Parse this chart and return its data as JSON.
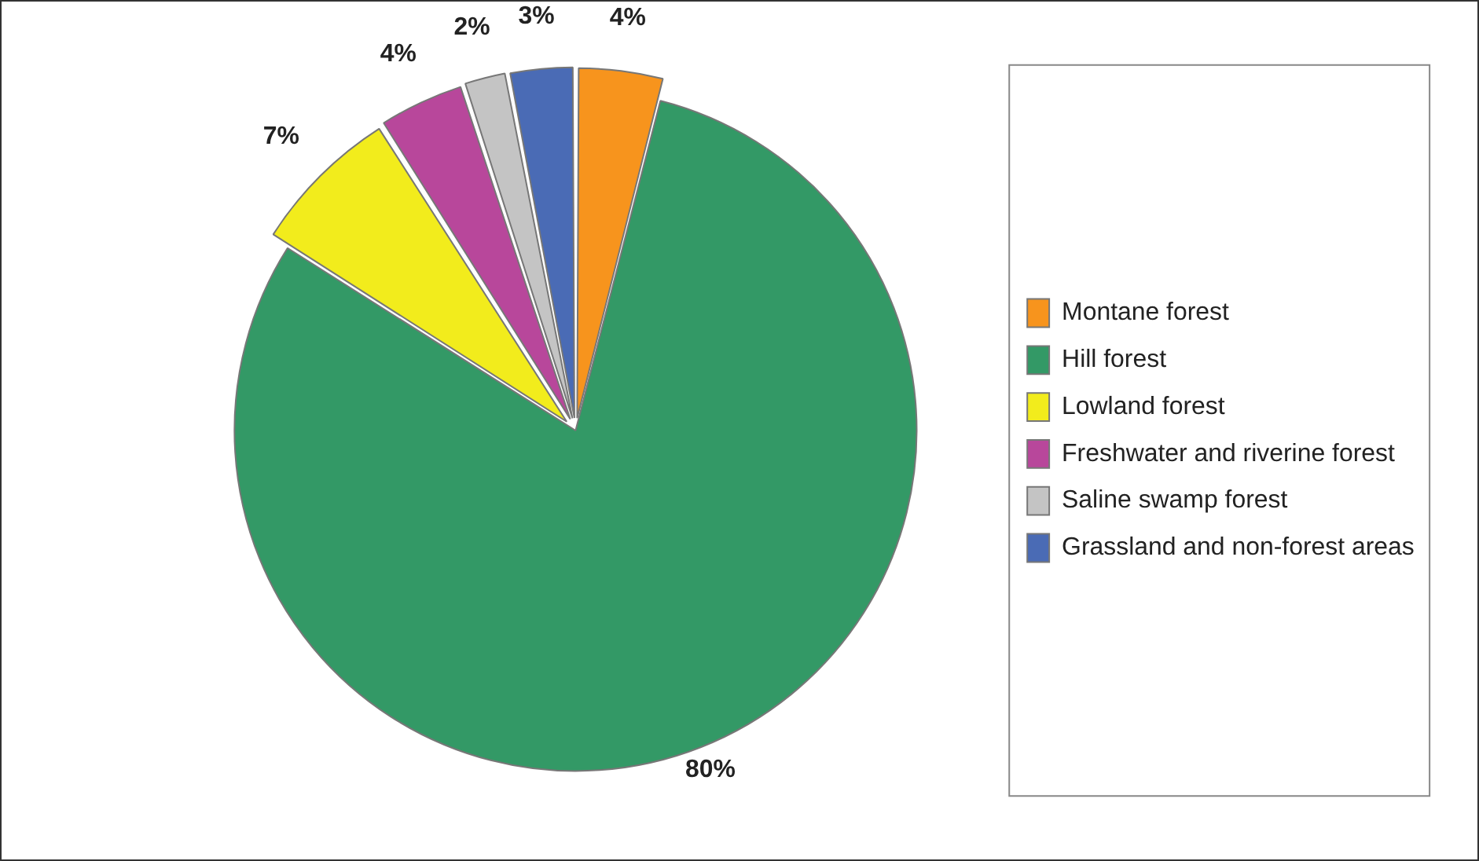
{
  "chart_data": {
    "type": "pie",
    "categories": [
      "Montane forest",
      "Hill forest",
      "Lowland forest",
      "Freshwater and riverine forest",
      "Saline swamp forest",
      "Grassland and non-forest areas"
    ],
    "values": [
      4,
      80,
      7,
      4,
      2,
      3
    ],
    "colors": [
      "#f7941d",
      "#339966",
      "#f2ec1c",
      "#b8479b",
      "#c4c4c4",
      "#4a6bb5"
    ],
    "value_labels": [
      "4%",
      "80%",
      "7%",
      "4%",
      "2%",
      "3%"
    ],
    "legend": "right"
  }
}
